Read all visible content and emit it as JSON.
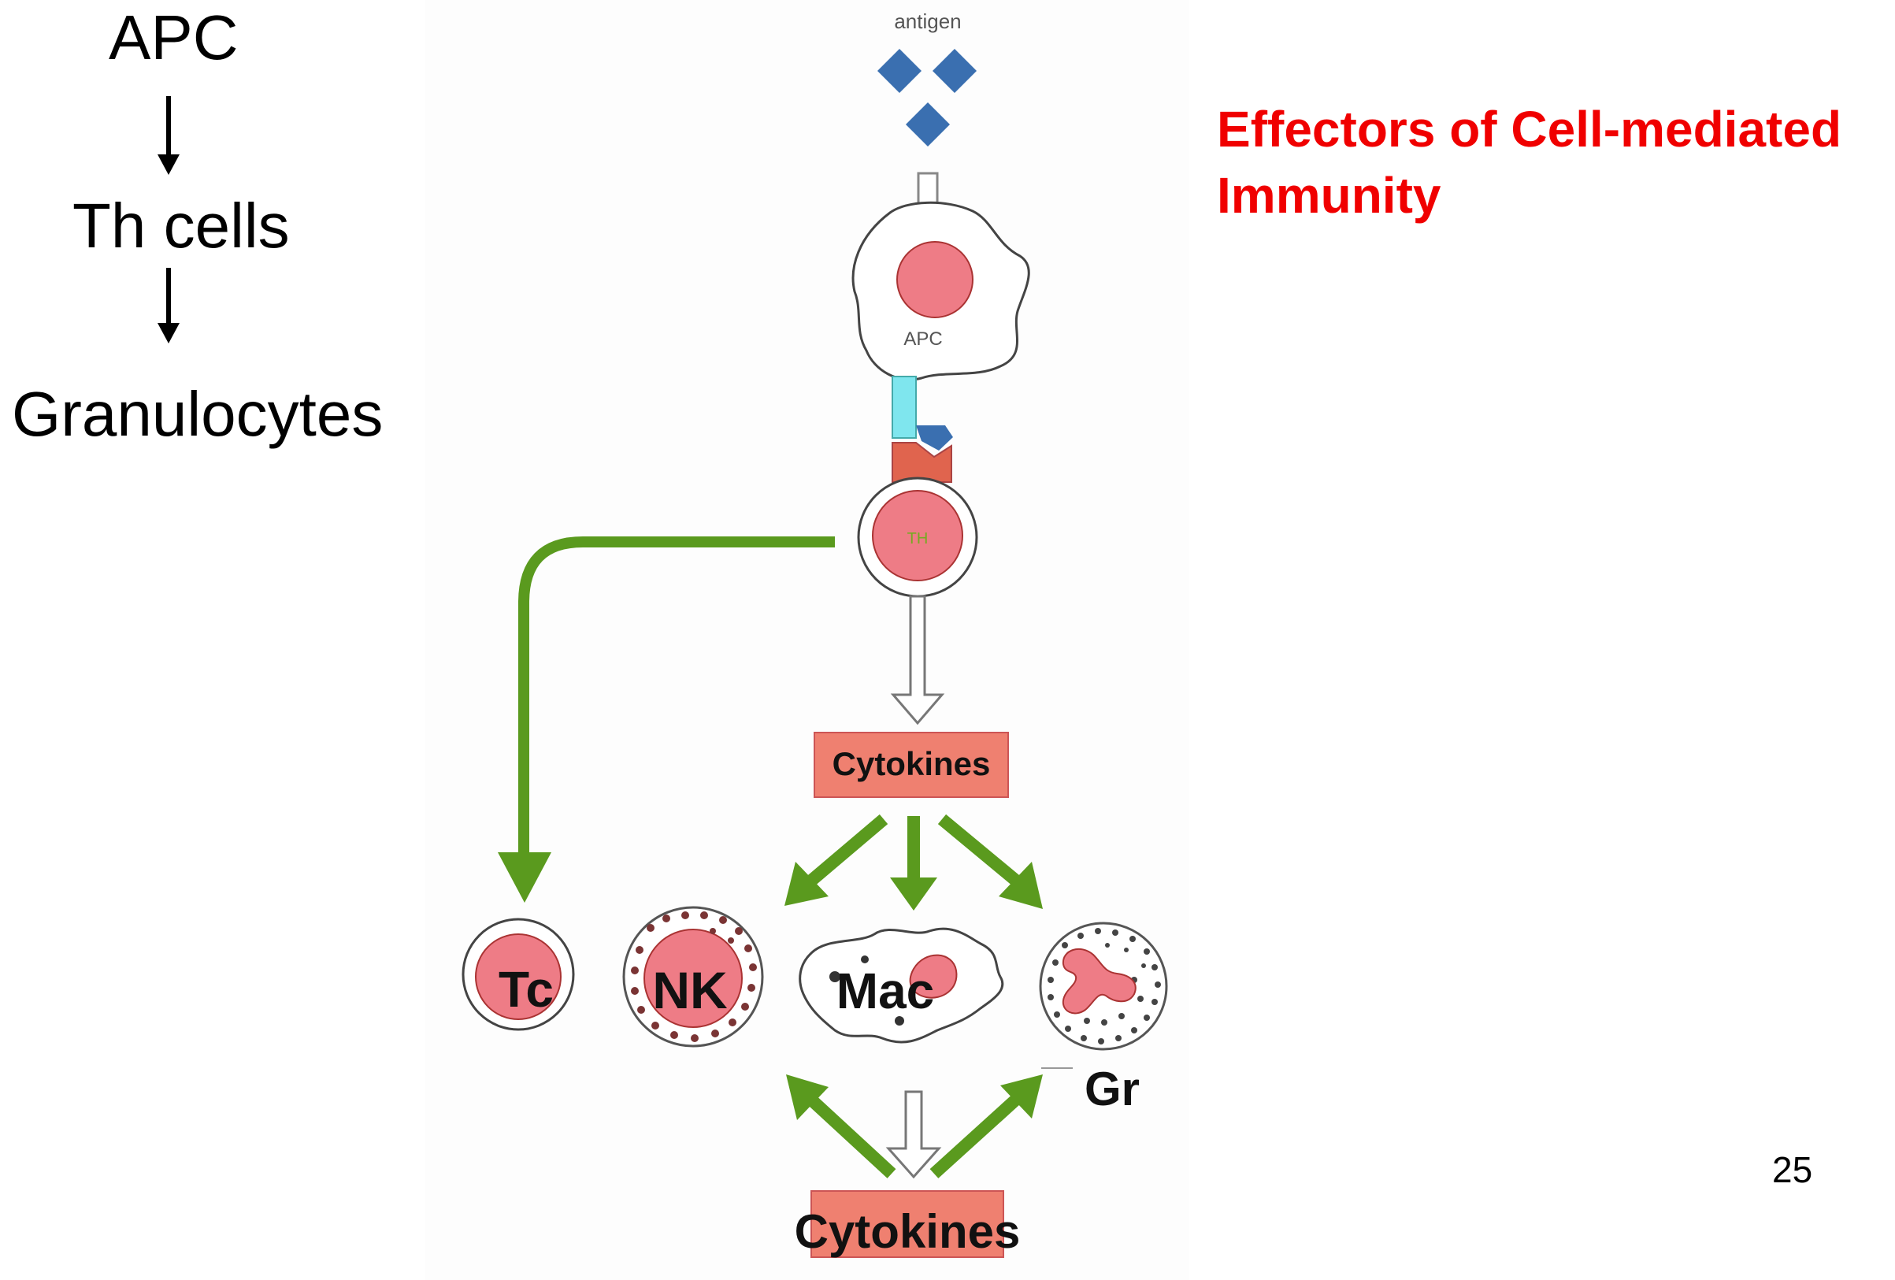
{
  "flow": {
    "apc": "APC",
    "th_cells": "Th cells",
    "granulocytes": "Granulocytes"
  },
  "title": {
    "line1": "Effectors of Cell-mediated",
    "line2": "Immunity"
  },
  "diagram": {
    "antigen_label": "antigen",
    "apc_label": "APC",
    "th_label": "TH",
    "cytokines_top": "Cytokines",
    "cytokines_bottom": "Cytokines",
    "tc_label": "Tc",
    "nk_label": "NK",
    "mac_label": "Mac",
    "gr_label": "Gr"
  },
  "page_number": "25",
  "colors": {
    "red_title": "#f00000",
    "green_arrow": "#5a9a1e",
    "cell_pink": "#ee7c86",
    "cytokine_box": "#ef8070",
    "antigen_blue": "#3a6fb0",
    "receptor_cyan": "#7fe6ee",
    "receptor_red": "#e0644e",
    "title_blue": "#2b2bd8"
  }
}
